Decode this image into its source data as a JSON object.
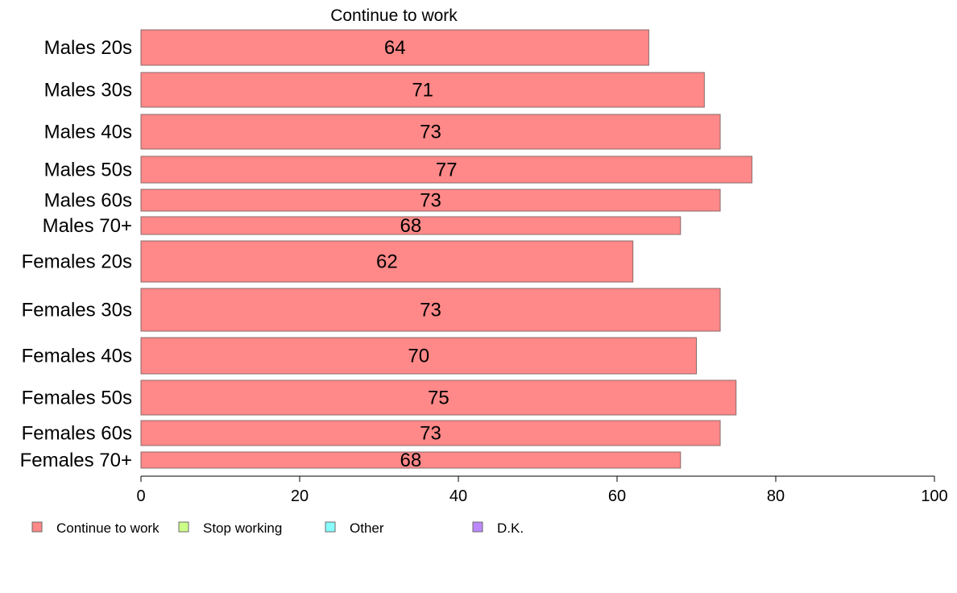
{
  "chart_data": {
    "type": "bar",
    "orientation": "horizontal",
    "title": "Continue to work",
    "xlabel": "",
    "ylabel": "",
    "xlim": [
      0,
      100
    ],
    "x_ticks": [
      0,
      20,
      40,
      60,
      80,
      100
    ],
    "grid": false,
    "legend_position": "bottom",
    "categories": [
      "Males 20s",
      "Males 30s",
      "Males 40s",
      "Males 50s",
      "Males 60s",
      "Males 70+",
      "Females 20s",
      "Females 30s",
      "Females 40s",
      "Females 50s",
      "Females 60s",
      "Females 70+"
    ],
    "series": [
      {
        "name": "Continue to work",
        "color": "#ff8888",
        "values": [
          64,
          71,
          73,
          77,
          73,
          68,
          62,
          73,
          70,
          75,
          73,
          68
        ]
      }
    ],
    "legend": [
      {
        "label": "Continue to work",
        "color": "#ff8888"
      },
      {
        "label": "Stop working",
        "color": "#ccff88"
      },
      {
        "label": "Other",
        "color": "#88ffff"
      },
      {
        "label": "D.K.",
        "color": "#bb88ff"
      }
    ]
  }
}
